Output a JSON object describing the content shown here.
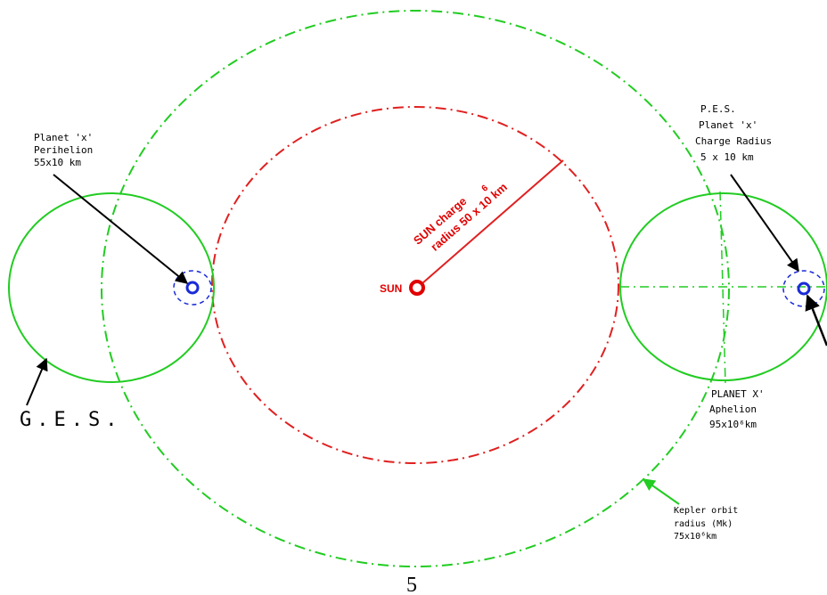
{
  "colors": {
    "ges_orbit": "#22cc22",
    "kepler_orbit": "#22cc22",
    "sun_charge": "#e02020",
    "planet": "#1a2bd8",
    "arrow": "#000000"
  },
  "labels": {
    "perihelion": [
      "Planet 'x'",
      "Perihelion",
      "55x10  km"
    ],
    "pes": [
      "P.E.S.",
      "Planet 'x'",
      "Charge Radius",
      "5 x 10  km"
    ],
    "ges": "G.E.S.",
    "sun": "SUN",
    "sun_charge": [
      "SUN charge",
      "radius 50 x 10  km"
    ],
    "sun_charge_exponent": "6",
    "aphelion": [
      "PLANET X'",
      "Aphelion",
      "95x10⁶km"
    ],
    "kepler": [
      "Kepler orbit",
      "radius (Mk)",
      "75x10⁶km"
    ]
  },
  "page_number": "5"
}
